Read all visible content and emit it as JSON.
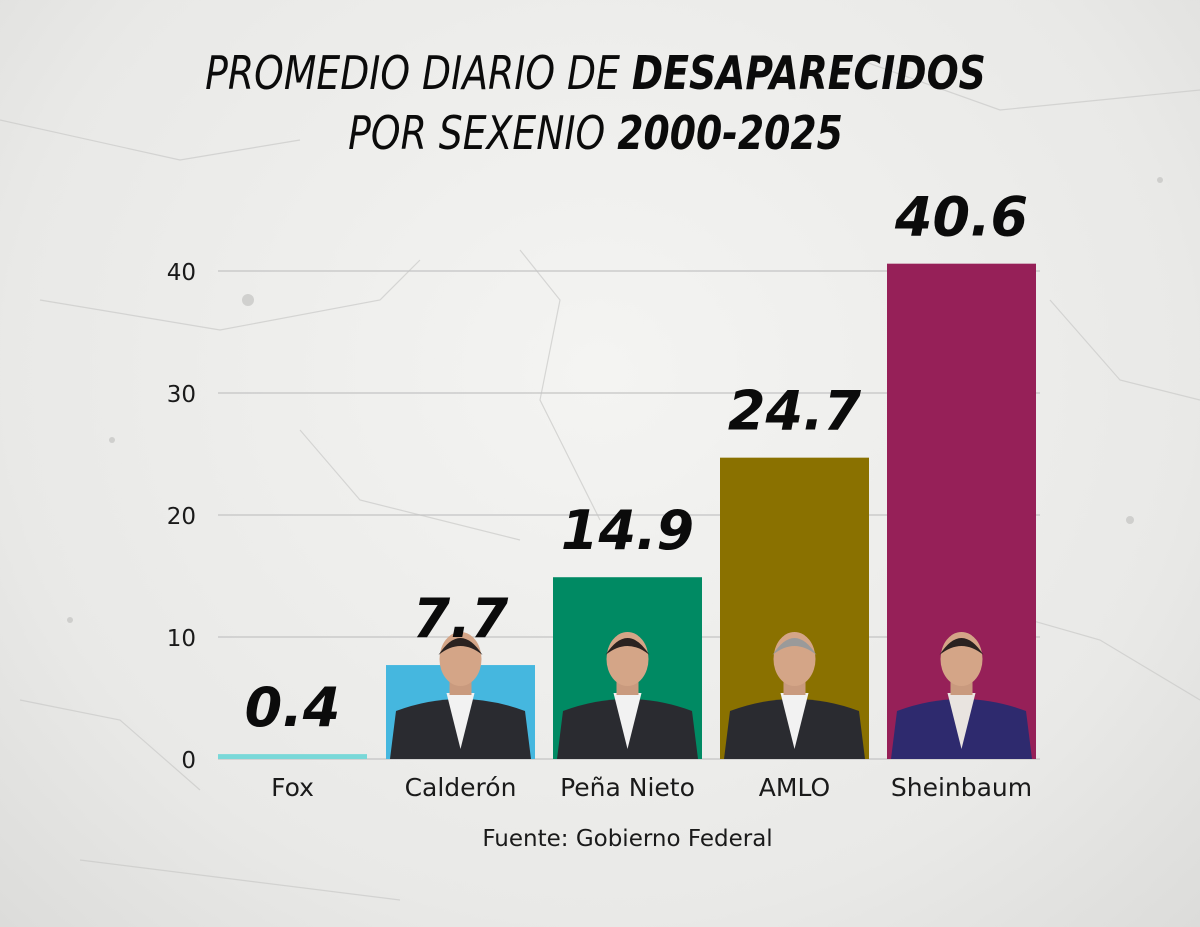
{
  "chart_data": {
    "type": "bar",
    "title_line1_light": "PROMEDIO DIARIO DE",
    "title_line1_bold": "DESAPARECIDOS",
    "title_line2_light": "POR SEXENIO",
    "title_line2_bold": "2000-2025",
    "categories": [
      "Fox",
      "Calderón",
      "Peña Nieto",
      "AMLO",
      "Sheinbaum"
    ],
    "values": [
      0.4,
      7.7,
      14.9,
      24.7,
      40.6
    ],
    "value_labels": [
      "0.4",
      "7.7",
      "14.9",
      "24.7",
      "40.6"
    ],
    "colors": [
      "#79d8d8",
      "#45b7df",
      "#008a63",
      "#8a7100",
      "#962058"
    ],
    "yticks": [
      0,
      10,
      20,
      30,
      40
    ],
    "ytick_labels": [
      "0",
      "10",
      "20",
      "30",
      "40"
    ],
    "ylim": [
      0,
      40.6
    ],
    "grid": true,
    "source": "Fuente: Gobierno Federal"
  }
}
